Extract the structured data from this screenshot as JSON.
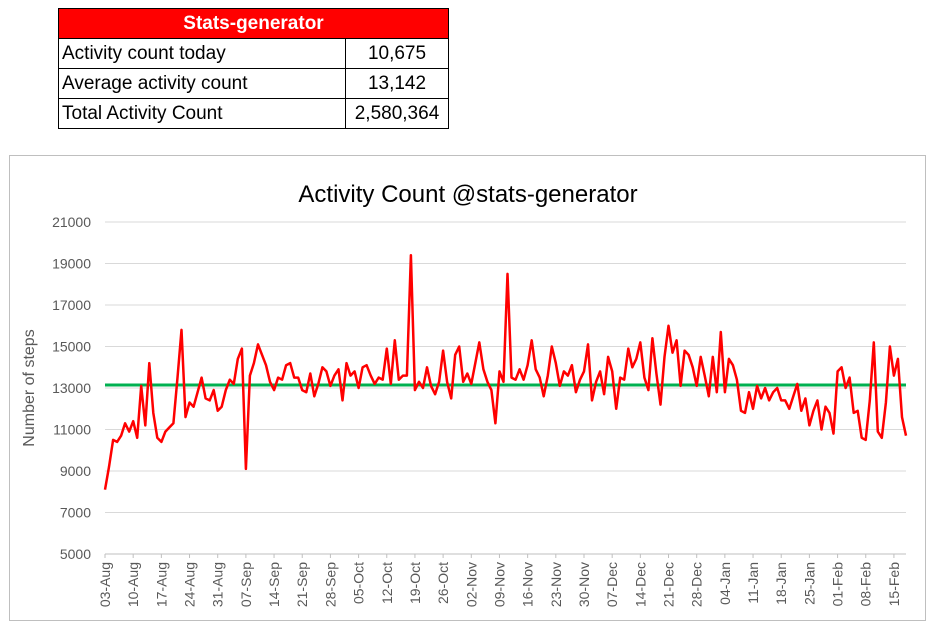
{
  "stats_table": {
    "title": "Stats-generator",
    "rows": [
      {
        "label": "Activity count today",
        "value": "10,675"
      },
      {
        "label": "Average activity count",
        "value": "13,142"
      },
      {
        "label": "Total Activity Count",
        "value": "2,580,364"
      }
    ]
  },
  "chart_data": {
    "type": "line",
    "title": "Activity Count @stats-generator",
    "xlabel": "",
    "ylabel": "Number of steps",
    "ylim": [
      5000,
      21000
    ],
    "yticks": [
      5000,
      7000,
      9000,
      11000,
      13000,
      15000,
      17000,
      19000,
      21000
    ],
    "grid": true,
    "legend": "none",
    "x_tick_labels": [
      "03-Aug",
      "10-Aug",
      "17-Aug",
      "24-Aug",
      "31-Aug",
      "07-Sep",
      "14-Sep",
      "21-Sep",
      "28-Sep",
      "05-Oct",
      "12-Oct",
      "19-Oct",
      "26-Oct",
      "02-Nov",
      "09-Nov",
      "16-Nov",
      "23-Nov",
      "30-Nov",
      "07-Dec",
      "14-Dec",
      "21-Dec",
      "28-Dec",
      "04-Jan",
      "11-Jan",
      "18-Jan",
      "25-Jan",
      "01-Feb",
      "08-Feb",
      "15-Feb"
    ],
    "x_start": "03-Aug",
    "series": [
      {
        "color": "#ff0000",
        "values": [
          8100,
          9200,
          10500,
          10400,
          10700,
          11300,
          10900,
          11400,
          10600,
          13100,
          11200,
          14200,
          11800,
          10600,
          10400,
          10900,
          11100,
          11300,
          13500,
          15800,
          11600,
          12300,
          12100,
          12800,
          13500,
          12500,
          12400,
          12900,
          11900,
          12100,
          12900,
          13400,
          13200,
          14400,
          14900,
          9100,
          13600,
          14200,
          15100,
          14600,
          14100,
          13300,
          12900,
          13500,
          13400,
          14100,
          14200,
          13500,
          13500,
          12900,
          12800,
          13700,
          12600,
          13200,
          14000,
          13800,
          13100,
          13600,
          13900,
          12400,
          14200,
          13600,
          13800,
          13000,
          14000,
          14100,
          13600,
          13200,
          13500,
          13400,
          14900,
          13200,
          15300,
          13400,
          13600,
          13600,
          19400,
          12900,
          13300,
          13000,
          14000,
          13100,
          12700,
          13300,
          14800,
          13300,
          12500,
          14600,
          15000,
          13300,
          13700,
          13200,
          14200,
          15200,
          13900,
          13300,
          12900,
          11300,
          13800,
          13300,
          18500,
          13500,
          13400,
          13900,
          13400,
          14100,
          15300,
          13900,
          13500,
          12600,
          13600,
          15000,
          14200,
          13100,
          13800,
          13600,
          14100,
          12800,
          13400,
          13800,
          15100,
          12400,
          13300,
          13800,
          12700,
          14500,
          13800,
          12000,
          13500,
          13400,
          14900,
          14000,
          14400,
          15200,
          13500,
          12900,
          15400,
          13700,
          12200,
          14500,
          16000,
          14700,
          15300,
          13100,
          14800,
          14600,
          14000,
          13100,
          14500,
          13600,
          12600,
          14500,
          12800,
          15700,
          12800,
          14400,
          14100,
          13400,
          11900,
          11800,
          12800,
          12000,
          13100,
          12500,
          13000,
          12400,
          12800,
          13000,
          12400,
          12400,
          12000,
          12600,
          13200,
          11900,
          12500,
          11200,
          11900,
          12400,
          11000,
          12100,
          11800,
          10800,
          13800,
          14000,
          13000,
          13500,
          11800,
          11900,
          10600,
          10500,
          12400,
          15200,
          10900,
          10600,
          12300,
          15000,
          13600,
          14400,
          11600,
          10700
        ]
      },
      {
        "color": "#00b050",
        "values": [
          13142,
          13142
        ]
      }
    ]
  }
}
